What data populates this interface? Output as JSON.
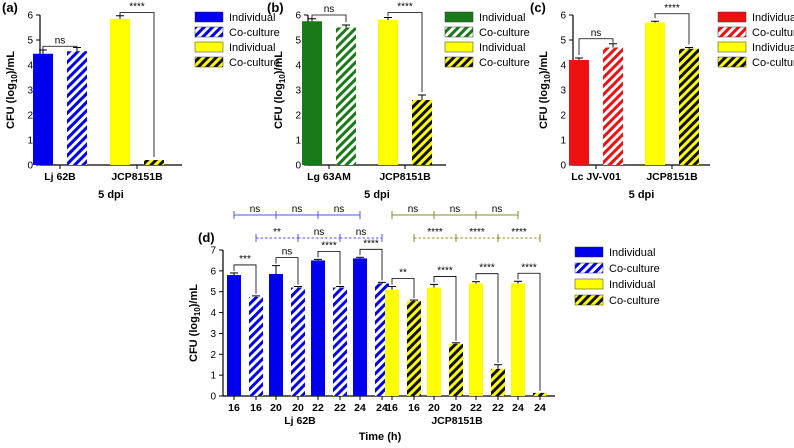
{
  "chart_data": [
    {
      "panel": "(a)",
      "type": "bar",
      "ylabel_parts": [
        "CFU (log",
        "10",
        ")/mL"
      ],
      "xlabel": "5 dpi",
      "ylim": [
        0,
        6
      ],
      "yticks": [
        0,
        1,
        2,
        3,
        4,
        5,
        6
      ],
      "groups": [
        "Lj 62B",
        "JCP8151B"
      ],
      "bars": [
        {
          "group": 0,
          "series": 0,
          "value": 4.45,
          "err": 0.15
        },
        {
          "group": 0,
          "series": 1,
          "value": 4.55,
          "err": 0.15
        },
        {
          "group": 1,
          "series": 2,
          "value": 5.85,
          "err": 0.12
        },
        {
          "group": 1,
          "series": 3,
          "value": 0.2,
          "err": 0
        }
      ],
      "legend": [
        "Individual",
        "Co-culture",
        "Individual",
        "Co-culture"
      ],
      "series_colors": [
        "#0000ee",
        "#0000ee",
        "#ffff00",
        "#ffff00"
      ],
      "series_hatched": [
        false,
        true,
        false,
        true
      ],
      "significance": [
        {
          "from": 0,
          "to": 1,
          "label": "ns",
          "level": 4.75
        },
        {
          "from": 2,
          "to": 3,
          "label": "****",
          "level": 6.1
        }
      ]
    },
    {
      "panel": "(b)",
      "type": "bar",
      "ylabel_parts": [
        "CFU (log",
        "10",
        ")/mL"
      ],
      "xlabel": "5 dpi",
      "ylim": [
        0,
        6
      ],
      "yticks": [
        0,
        1,
        2,
        3,
        4,
        5,
        6
      ],
      "groups": [
        "Lg 63AM",
        "JCP8151B"
      ],
      "bars": [
        {
          "group": 0,
          "series": 0,
          "value": 5.75,
          "err": 0.1
        },
        {
          "group": 0,
          "series": 1,
          "value": 5.5,
          "err": 0.1
        },
        {
          "group": 1,
          "series": 2,
          "value": 5.8,
          "err": 0.1
        },
        {
          "group": 1,
          "series": 3,
          "value": 2.6,
          "err": 0.2
        }
      ],
      "legend": [
        "Individual",
        "Co-culture",
        "Individual",
        "Co-culture"
      ],
      "series_colors": [
        "#1a7a1a",
        "#1a7a1a",
        "#ffff00",
        "#ffff00"
      ],
      "series_hatched": [
        false,
        true,
        false,
        true
      ],
      "significance": [
        {
          "from": 0,
          "to": 1,
          "label": "ns",
          "level": 6.0
        },
        {
          "from": 2,
          "to": 3,
          "label": "****",
          "level": 6.1
        }
      ]
    },
    {
      "panel": "(c)",
      "type": "bar",
      "ylabel_parts": [
        "CFU (log",
        "10",
        ")/mL"
      ],
      "xlabel": "5 dpi",
      "ylim": [
        0,
        6
      ],
      "yticks": [
        0,
        1,
        2,
        3,
        4,
        5,
        6
      ],
      "groups": [
        "Lc JV-V01",
        "JCP8151B"
      ],
      "bars": [
        {
          "group": 0,
          "series": 0,
          "value": 4.2,
          "err": 0.08
        },
        {
          "group": 0,
          "series": 1,
          "value": 4.7,
          "err": 0.15
        },
        {
          "group": 1,
          "series": 2,
          "value": 5.7,
          "err": 0.05
        },
        {
          "group": 1,
          "series": 3,
          "value": 4.65,
          "err": 0.05
        }
      ],
      "legend": [
        "Individual",
        "Co-culture",
        "Individual",
        "Co-culture"
      ],
      "series_colors": [
        "#ee1111",
        "#ee1111",
        "#ffff00",
        "#ffff00"
      ],
      "series_hatched": [
        false,
        true,
        false,
        true
      ],
      "significance": [
        {
          "from": 0,
          "to": 1,
          "label": "ns",
          "level": 5.05
        },
        {
          "from": 2,
          "to": 3,
          "label": "****",
          "level": 6.05
        }
      ]
    },
    {
      "panel": "(d)",
      "type": "bar",
      "ylabel_parts": [
        "CFU (log",
        "10",
        ")/mL"
      ],
      "xlabel": "Time (h)",
      "ylim": [
        0,
        7
      ],
      "yticks": [
        0,
        1,
        2,
        3,
        4,
        5,
        6,
        7
      ],
      "groups": [
        "Lj 62B",
        "JCP8151B"
      ],
      "time_labels": [
        "16",
        "16",
        "20",
        "20",
        "22",
        "22",
        "24",
        "24",
        "16",
        "16",
        "20",
        "20",
        "22",
        "22",
        "24",
        "24"
      ],
      "values": [
        5.8,
        4.75,
        5.85,
        5.2,
        6.5,
        5.2,
        6.6,
        5.4,
        5.1,
        4.55,
        5.2,
        2.5,
        5.4,
        1.3,
        5.4,
        0.15
      ],
      "errors": [
        0.1,
        0.05,
        0.4,
        0.05,
        0.05,
        0.05,
        0.05,
        0.05,
        0.15,
        0.05,
        0.15,
        0.05,
        0.08,
        0.2,
        0.1,
        0
      ],
      "bar_series": [
        0,
        1,
        0,
        1,
        0,
        1,
        0,
        1,
        2,
        3,
        2,
        3,
        2,
        3,
        2,
        3
      ],
      "legend": [
        "Individual",
        "Co-culture",
        "Individual",
        "Co-culture"
      ],
      "series_colors": [
        "#0000ee",
        "#0000ee",
        "#ffff00",
        "#ffff00"
      ],
      "series_hatched": [
        false,
        true,
        false,
        true
      ],
      "pair_significance": [
        "***",
        "ns",
        "****",
        "****",
        "**",
        "****",
        "****",
        "****"
      ],
      "top_comparisons": [
        {
          "from": 0,
          "to": 2,
          "label": "ns",
          "color": "#4a5ae8",
          "dashed": false,
          "row": 0
        },
        {
          "from": 2,
          "to": 4,
          "label": "ns",
          "color": "#4a5ae8",
          "dashed": false,
          "row": 0
        },
        {
          "from": 4,
          "to": 6,
          "label": "ns",
          "color": "#4a5ae8",
          "dashed": false,
          "row": 0
        },
        {
          "from": 1,
          "to": 3,
          "label": "**",
          "color": "#4a5ae8",
          "dashed": true,
          "row": 1
        },
        {
          "from": 3,
          "to": 5,
          "label": "ns",
          "color": "#4a5ae8",
          "dashed": true,
          "row": 1
        },
        {
          "from": 5,
          "to": 7,
          "label": "ns",
          "color": "#4a5ae8",
          "dashed": true,
          "row": 1
        },
        {
          "from": 8,
          "to": 10,
          "label": "ns",
          "color": "#8a8a2a",
          "dashed": false,
          "row": 0
        },
        {
          "from": 10,
          "to": 12,
          "label": "ns",
          "color": "#8a8a2a",
          "dashed": false,
          "row": 0
        },
        {
          "from": 12,
          "to": 14,
          "label": "ns",
          "color": "#8a8a2a",
          "dashed": false,
          "row": 0
        },
        {
          "from": 9,
          "to": 11,
          "label": "****",
          "color": "#8a8a2a",
          "dashed": true,
          "row": 1
        },
        {
          "from": 11,
          "to": 13,
          "label": "****",
          "color": "#8a8a2a",
          "dashed": true,
          "row": 1
        },
        {
          "from": 13,
          "to": 15,
          "label": "****",
          "color": "#8a8a2a",
          "dashed": true,
          "row": 1
        }
      ]
    }
  ]
}
